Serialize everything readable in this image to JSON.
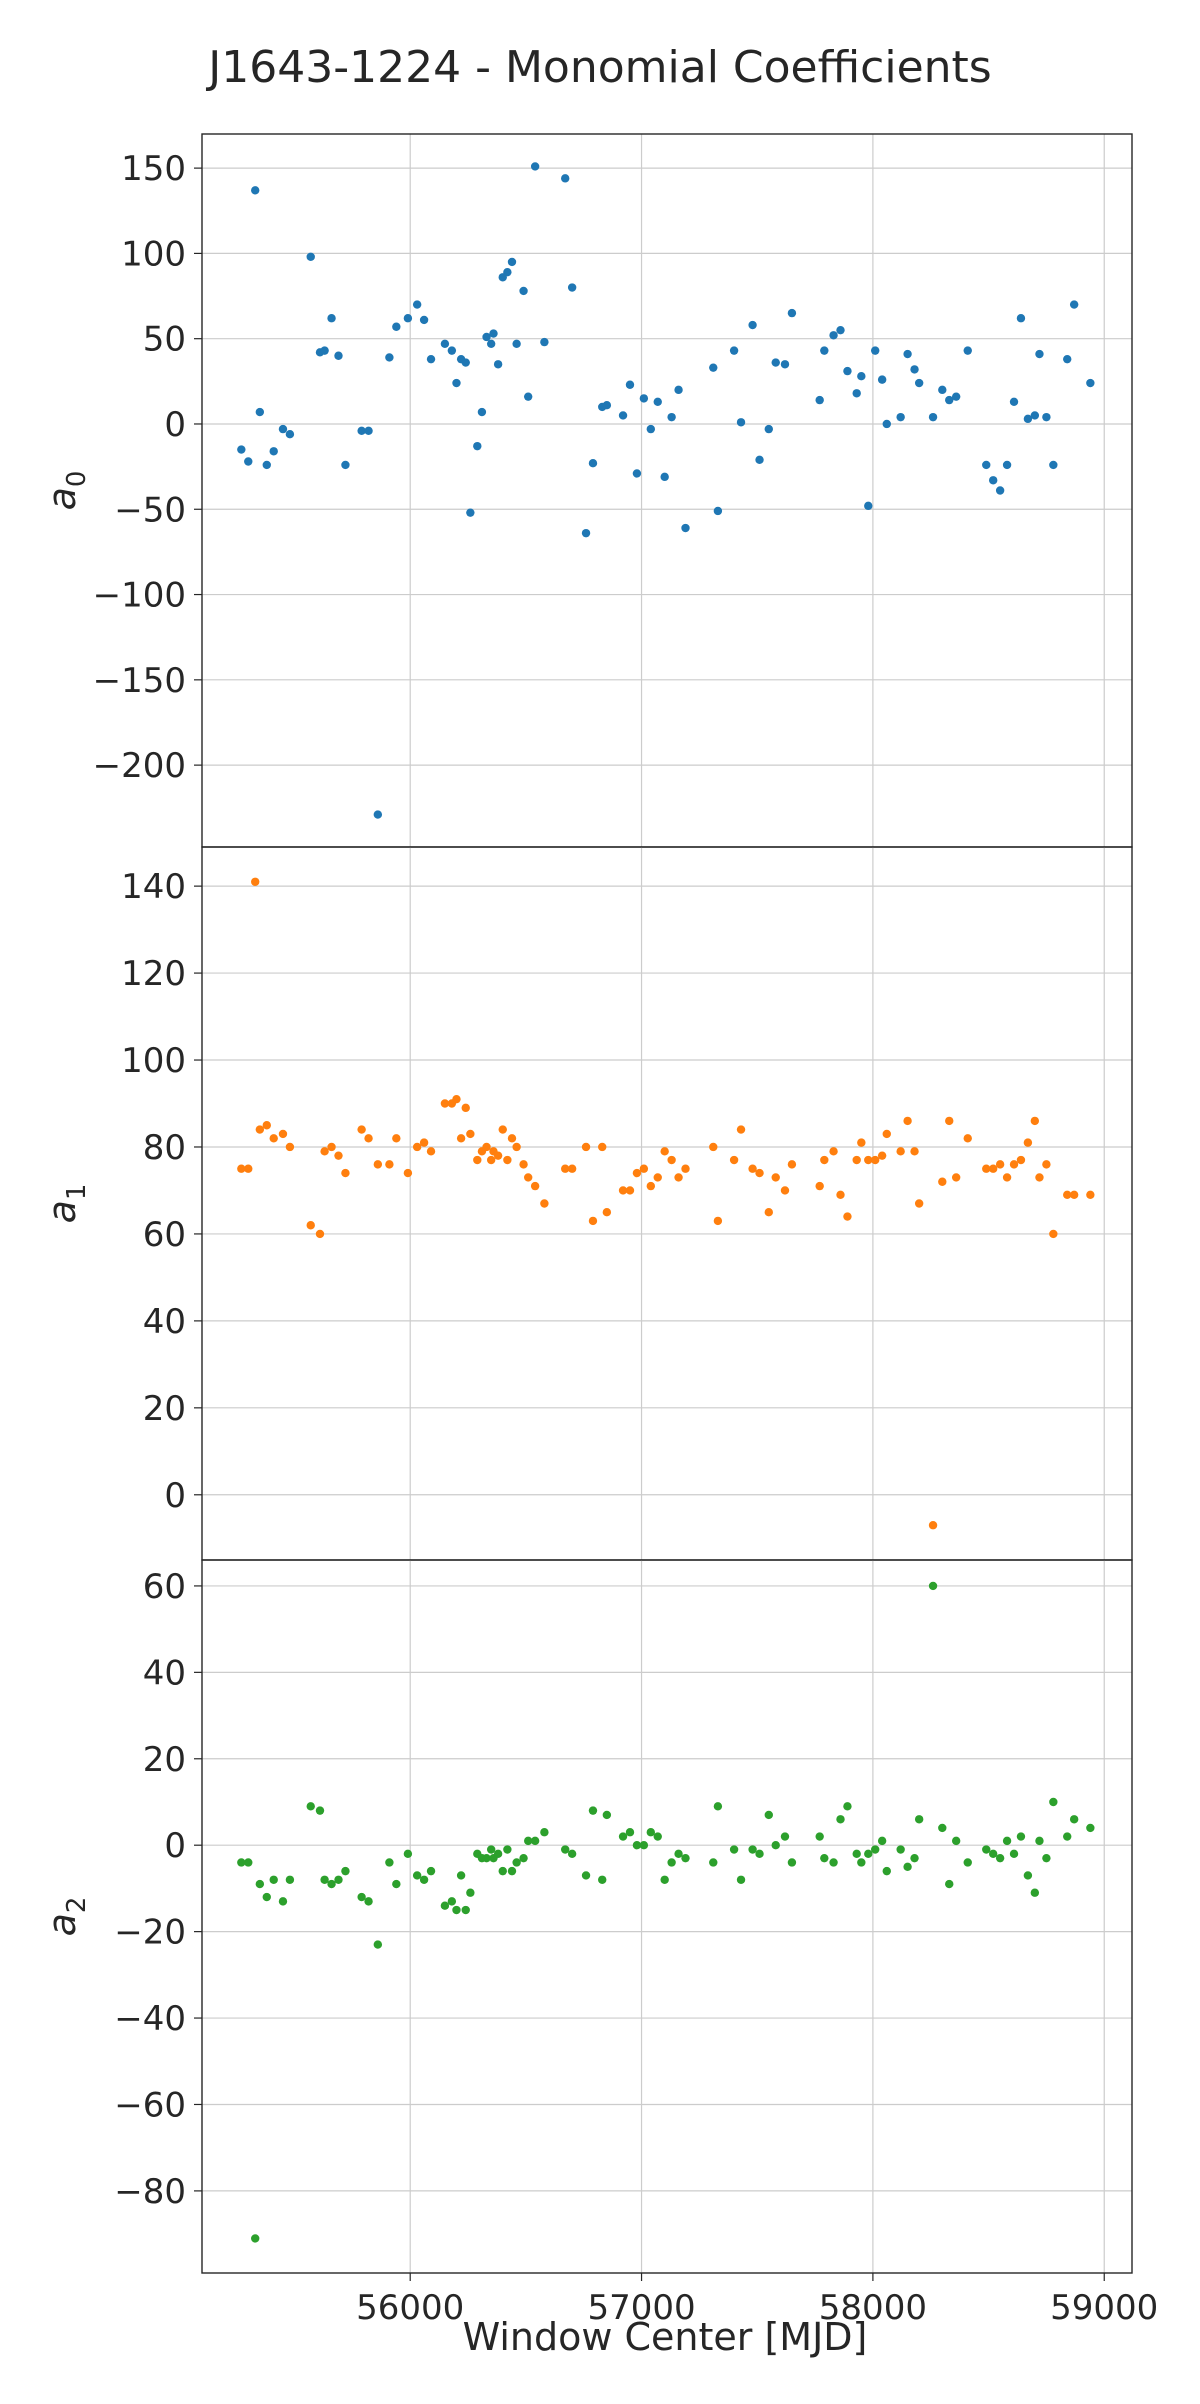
{
  "chart_data": {
    "type": "scatter",
    "title": "J1643-1224 - Monomial Coefficients",
    "xlabel": "Window Center [MJD]",
    "xlim": [
      55100,
      59120
    ],
    "x_ticks": [
      "56000",
      "57000",
      "58000",
      "59000"
    ],
    "grid": true,
    "shared_x": true,
    "panels": [
      {
        "ylabel": "a",
        "ylabel_sub": "0",
        "color": "#1f77b4",
        "ylim": [
          -248,
          170
        ],
        "y_ticks": [
          "150",
          "100",
          "50",
          "0",
          "−50",
          "−100",
          "−150",
          "−200"
        ],
        "points": [
          [
            55270,
            -15
          ],
          [
            55300,
            -22
          ],
          [
            55330,
            137
          ],
          [
            55350,
            7
          ],
          [
            55380,
            -24
          ],
          [
            55410,
            -16
          ],
          [
            55450,
            -3
          ],
          [
            55480,
            -6
          ],
          [
            55570,
            98
          ],
          [
            55610,
            42
          ],
          [
            55630,
            43
          ],
          [
            55660,
            62
          ],
          [
            55690,
            40
          ],
          [
            55720,
            -24
          ],
          [
            55790,
            -4
          ],
          [
            55820,
            -4
          ],
          [
            55860,
            -229
          ],
          [
            55910,
            39
          ],
          [
            55940,
            57
          ],
          [
            55990,
            62
          ],
          [
            56030,
            70
          ],
          [
            56060,
            61
          ],
          [
            56090,
            38
          ],
          [
            56150,
            47
          ],
          [
            56180,
            43
          ],
          [
            56200,
            24
          ],
          [
            56220,
            38
          ],
          [
            56240,
            36
          ],
          [
            56260,
            -52
          ],
          [
            56290,
            -13
          ],
          [
            56310,
            7
          ],
          [
            56330,
            51
          ],
          [
            56350,
            47
          ],
          [
            56360,
            53
          ],
          [
            56380,
            35
          ],
          [
            56400,
            86
          ],
          [
            56420,
            89
          ],
          [
            56440,
            95
          ],
          [
            56460,
            47
          ],
          [
            56490,
            78
          ],
          [
            56510,
            16
          ],
          [
            56540,
            151
          ],
          [
            56580,
            48
          ],
          [
            56670,
            144
          ],
          [
            56700,
            80
          ],
          [
            56760,
            -64
          ],
          [
            56790,
            -23
          ],
          [
            56830,
            10
          ],
          [
            56850,
            11
          ],
          [
            56920,
            5
          ],
          [
            56950,
            23
          ],
          [
            56980,
            -29
          ],
          [
            57010,
            15
          ],
          [
            57040,
            -3
          ],
          [
            57070,
            13
          ],
          [
            57100,
            -31
          ],
          [
            57130,
            4
          ],
          [
            57160,
            20
          ],
          [
            57190,
            -61
          ],
          [
            57310,
            33
          ],
          [
            57330,
            -51
          ],
          [
            57400,
            43
          ],
          [
            57430,
            1
          ],
          [
            57480,
            58
          ],
          [
            57510,
            -21
          ],
          [
            57550,
            -3
          ],
          [
            57580,
            36
          ],
          [
            57620,
            35
          ],
          [
            57650,
            65
          ],
          [
            57770,
            14
          ],
          [
            57790,
            43
          ],
          [
            57830,
            52
          ],
          [
            57860,
            55
          ],
          [
            57890,
            31
          ],
          [
            57930,
            18
          ],
          [
            57950,
            28
          ],
          [
            57980,
            -48
          ],
          [
            58010,
            43
          ],
          [
            58040,
            26
          ],
          [
            58060,
            0
          ],
          [
            58120,
            4
          ],
          [
            58150,
            41
          ],
          [
            58180,
            32
          ],
          [
            58200,
            24
          ],
          [
            58260,
            4
          ],
          [
            58300,
            20
          ],
          [
            58330,
            14
          ],
          [
            58360,
            16
          ],
          [
            58410,
            43
          ],
          [
            58490,
            -24
          ],
          [
            58520,
            -33
          ],
          [
            58550,
            -39
          ],
          [
            58580,
            -24
          ],
          [
            58610,
            13
          ],
          [
            58640,
            62
          ],
          [
            58670,
            3
          ],
          [
            58700,
            5
          ],
          [
            58720,
            41
          ],
          [
            58750,
            4
          ],
          [
            58780,
            -24
          ],
          [
            58840,
            38
          ],
          [
            58870,
            70
          ],
          [
            58940,
            24
          ]
        ]
      },
      {
        "ylabel": "a",
        "ylabel_sub": "1",
        "color": "#ff7f0e",
        "ylim": [
          -15,
          149
        ],
        "y_ticks": [
          "140",
          "120",
          "100",
          "80",
          "60",
          "40",
          "20",
          "0"
        ],
        "points": [
          [
            55270,
            75
          ],
          [
            55300,
            75
          ],
          [
            55330,
            141
          ],
          [
            55350,
            84
          ],
          [
            55380,
            85
          ],
          [
            55410,
            82
          ],
          [
            55450,
            83
          ],
          [
            55480,
            80
          ],
          [
            55570,
            62
          ],
          [
            55610,
            60
          ],
          [
            55630,
            79
          ],
          [
            55660,
            80
          ],
          [
            55690,
            78
          ],
          [
            55720,
            74
          ],
          [
            55790,
            84
          ],
          [
            55820,
            82
          ],
          [
            55860,
            76
          ],
          [
            55910,
            76
          ],
          [
            55940,
            82
          ],
          [
            55990,
            74
          ],
          [
            56030,
            80
          ],
          [
            56060,
            81
          ],
          [
            56090,
            79
          ],
          [
            56150,
            90
          ],
          [
            56180,
            90
          ],
          [
            56200,
            91
          ],
          [
            56220,
            82
          ],
          [
            56240,
            89
          ],
          [
            56260,
            83
          ],
          [
            56290,
            77
          ],
          [
            56310,
            79
          ],
          [
            56330,
            80
          ],
          [
            56350,
            77
          ],
          [
            56360,
            79
          ],
          [
            56380,
            78
          ],
          [
            56400,
            84
          ],
          [
            56420,
            77
          ],
          [
            56440,
            82
          ],
          [
            56460,
            80
          ],
          [
            56490,
            76
          ],
          [
            56510,
            73
          ],
          [
            56540,
            71
          ],
          [
            56580,
            67
          ],
          [
            56670,
            75
          ],
          [
            56700,
            75
          ],
          [
            56760,
            80
          ],
          [
            56790,
            63
          ],
          [
            56830,
            80
          ],
          [
            56850,
            65
          ],
          [
            56920,
            70
          ],
          [
            56950,
            70
          ],
          [
            56980,
            74
          ],
          [
            57010,
            75
          ],
          [
            57040,
            71
          ],
          [
            57070,
            73
          ],
          [
            57100,
            79
          ],
          [
            57130,
            77
          ],
          [
            57160,
            73
          ],
          [
            57190,
            75
          ],
          [
            57310,
            80
          ],
          [
            57330,
            63
          ],
          [
            57400,
            77
          ],
          [
            57430,
            84
          ],
          [
            57480,
            75
          ],
          [
            57510,
            74
          ],
          [
            57550,
            65
          ],
          [
            57580,
            73
          ],
          [
            57620,
            70
          ],
          [
            57650,
            76
          ],
          [
            57770,
            71
          ],
          [
            57790,
            77
          ],
          [
            57830,
            79
          ],
          [
            57860,
            69
          ],
          [
            57890,
            64
          ],
          [
            57930,
            77
          ],
          [
            57950,
            81
          ],
          [
            57980,
            77
          ],
          [
            58010,
            77
          ],
          [
            58040,
            78
          ],
          [
            58060,
            83
          ],
          [
            58120,
            79
          ],
          [
            58150,
            86
          ],
          [
            58180,
            79
          ],
          [
            58200,
            67
          ],
          [
            58260,
            -7
          ],
          [
            58300,
            72
          ],
          [
            58330,
            86
          ],
          [
            58360,
            73
          ],
          [
            58410,
            82
          ],
          [
            58490,
            75
          ],
          [
            58520,
            75
          ],
          [
            58550,
            76
          ],
          [
            58580,
            73
          ],
          [
            58610,
            76
          ],
          [
            58640,
            77
          ],
          [
            58670,
            81
          ],
          [
            58700,
            86
          ],
          [
            58720,
            73
          ],
          [
            58750,
            76
          ],
          [
            58780,
            60
          ],
          [
            58840,
            69
          ],
          [
            58870,
            69
          ],
          [
            58940,
            69
          ]
        ]
      },
      {
        "ylabel": "a",
        "ylabel_sub": "2",
        "color": "#2ca02c",
        "ylim": [
          -99,
          66
        ],
        "y_ticks": [
          "60",
          "40",
          "20",
          "0",
          "−20",
          "−40",
          "−60",
          "−80"
        ],
        "points": [
          [
            55270,
            -4
          ],
          [
            55300,
            -4
          ],
          [
            55330,
            -91
          ],
          [
            55350,
            -9
          ],
          [
            55380,
            -12
          ],
          [
            55410,
            -8
          ],
          [
            55450,
            -13
          ],
          [
            55480,
            -8
          ],
          [
            55570,
            9
          ],
          [
            55610,
            8
          ],
          [
            55630,
            -8
          ],
          [
            55660,
            -9
          ],
          [
            55690,
            -8
          ],
          [
            55720,
            -6
          ],
          [
            55790,
            -12
          ],
          [
            55820,
            -13
          ],
          [
            55860,
            -23
          ],
          [
            55910,
            -4
          ],
          [
            55940,
            -9
          ],
          [
            55990,
            -2
          ],
          [
            56030,
            -7
          ],
          [
            56060,
            -8
          ],
          [
            56090,
            -6
          ],
          [
            56150,
            -14
          ],
          [
            56180,
            -13
          ],
          [
            56200,
            -15
          ],
          [
            56220,
            -7
          ],
          [
            56240,
            -15
          ],
          [
            56260,
            -11
          ],
          [
            56290,
            -2
          ],
          [
            56310,
            -3
          ],
          [
            56330,
            -3
          ],
          [
            56350,
            -1
          ],
          [
            56360,
            -3
          ],
          [
            56380,
            -2
          ],
          [
            56400,
            -6
          ],
          [
            56420,
            -1
          ],
          [
            56440,
            -6
          ],
          [
            56460,
            -4
          ],
          [
            56490,
            -3
          ],
          [
            56510,
            1
          ],
          [
            56540,
            1
          ],
          [
            56580,
            3
          ],
          [
            56670,
            -1
          ],
          [
            56700,
            -2
          ],
          [
            56760,
            -7
          ],
          [
            56790,
            8
          ],
          [
            56830,
            -8
          ],
          [
            56850,
            7
          ],
          [
            56920,
            2
          ],
          [
            56950,
            3
          ],
          [
            56980,
            0
          ],
          [
            57010,
            0
          ],
          [
            57040,
            3
          ],
          [
            57070,
            2
          ],
          [
            57100,
            -8
          ],
          [
            57130,
            -4
          ],
          [
            57160,
            -2
          ],
          [
            57190,
            -3
          ],
          [
            57310,
            -4
          ],
          [
            57330,
            9
          ],
          [
            57400,
            -1
          ],
          [
            57430,
            -8
          ],
          [
            57480,
            -1
          ],
          [
            57510,
            -2
          ],
          [
            57550,
            7
          ],
          [
            57580,
            0
          ],
          [
            57620,
            2
          ],
          [
            57650,
            -4
          ],
          [
            57770,
            2
          ],
          [
            57790,
            -3
          ],
          [
            57830,
            -4
          ],
          [
            57860,
            6
          ],
          [
            57890,
            9
          ],
          [
            57930,
            -2
          ],
          [
            57950,
            -4
          ],
          [
            57980,
            -2
          ],
          [
            58010,
            -1
          ],
          [
            58040,
            1
          ],
          [
            58060,
            -6
          ],
          [
            58120,
            -1
          ],
          [
            58150,
            -5
          ],
          [
            58180,
            -3
          ],
          [
            58200,
            6
          ],
          [
            58260,
            60
          ],
          [
            58300,
            4
          ],
          [
            58330,
            -9
          ],
          [
            58360,
            1
          ],
          [
            58410,
            -4
          ],
          [
            58490,
            -1
          ],
          [
            58520,
            -2
          ],
          [
            58550,
            -3
          ],
          [
            58580,
            1
          ],
          [
            58610,
            -2
          ],
          [
            58640,
            2
          ],
          [
            58670,
            -7
          ],
          [
            58700,
            -11
          ],
          [
            58720,
            1
          ],
          [
            58750,
            -3
          ],
          [
            58780,
            10
          ],
          [
            58840,
            2
          ],
          [
            58870,
            6
          ],
          [
            58940,
            4
          ]
        ]
      }
    ]
  }
}
